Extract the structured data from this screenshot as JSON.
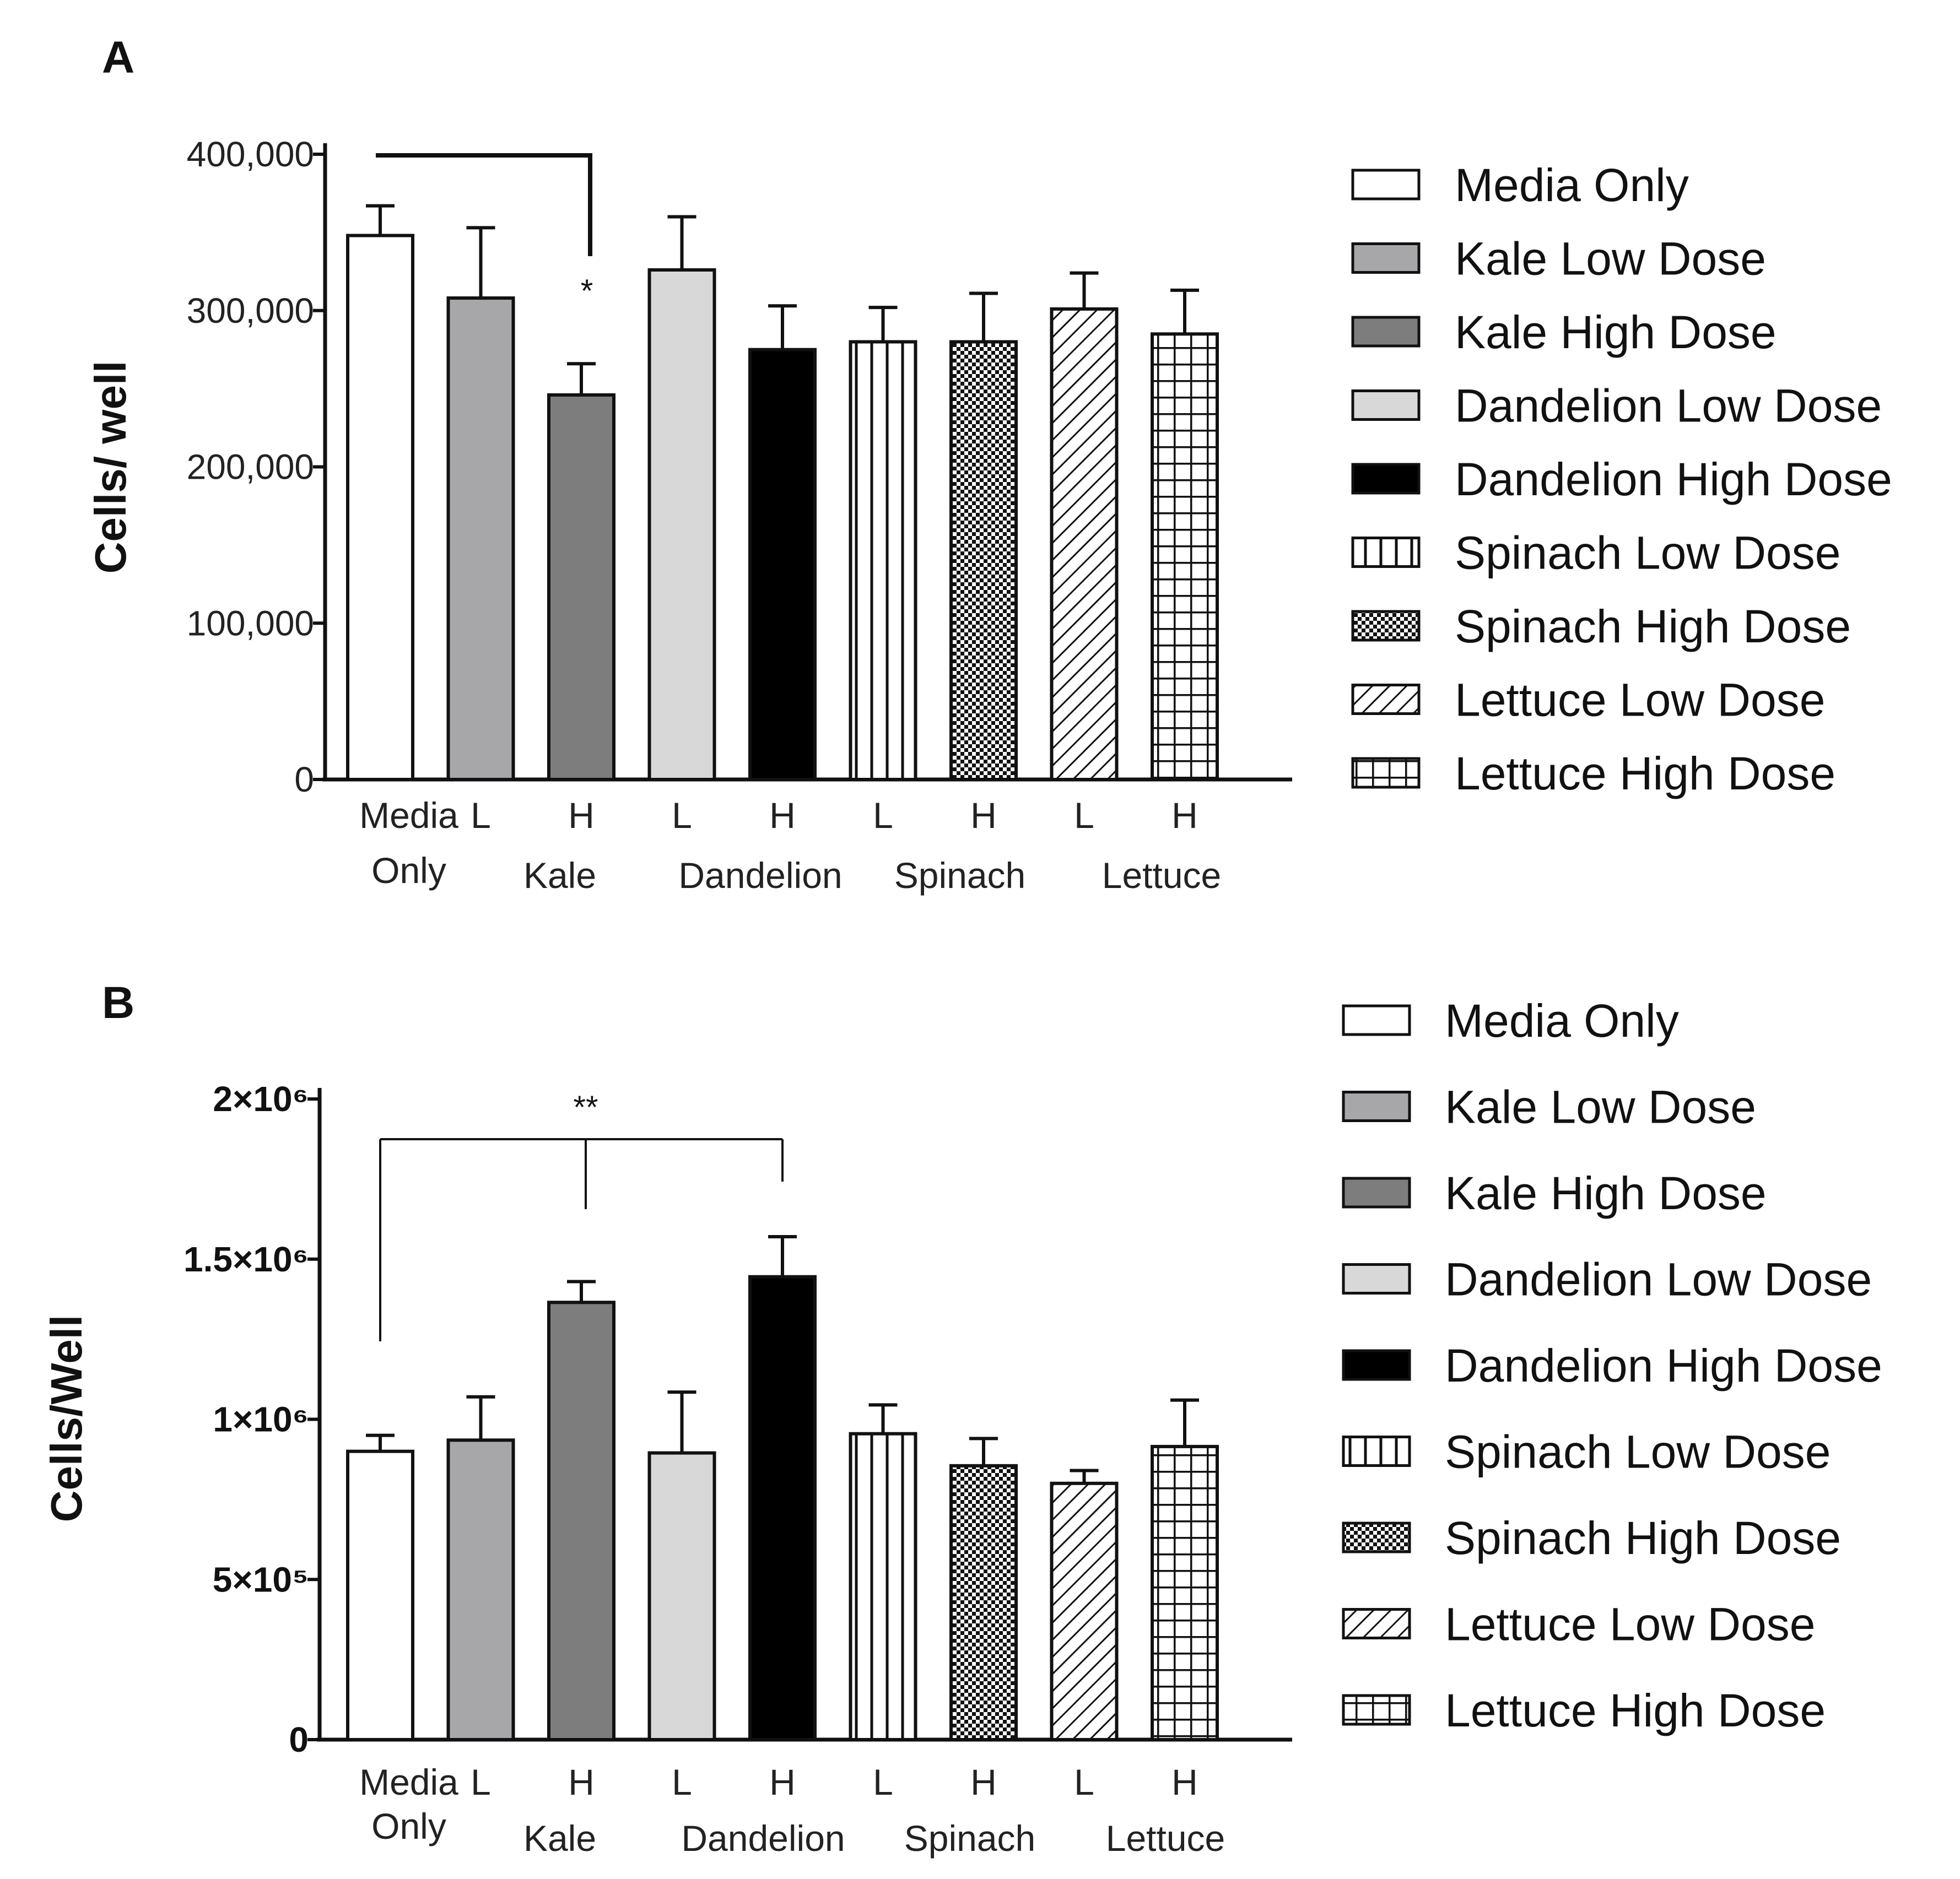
{
  "legend": [
    {
      "label": "Media Only",
      "fill": "#ffffff",
      "pattern": "none"
    },
    {
      "label": "Kale Low Dose",
      "fill": "#a7a7aa",
      "pattern": "none"
    },
    {
      "label": "Kale High Dose",
      "fill": "#7d7d7d",
      "pattern": "none"
    },
    {
      "label": "Dandelion Low Dose",
      "fill": "#d8d8d8",
      "pattern": "none"
    },
    {
      "label": "Dandelion High Dose",
      "fill": "#000000",
      "pattern": "none"
    },
    {
      "label": "Spinach Low Dose",
      "fill": "#ffffff",
      "pattern": "vlines"
    },
    {
      "label": "Spinach High Dose",
      "fill": "#ffffff",
      "pattern": "checker"
    },
    {
      "label": "Lettuce Low Dose",
      "fill": "#ffffff",
      "pattern": "diag"
    },
    {
      "label": "Lettuce High Dose",
      "fill": "#ffffff",
      "pattern": "grid"
    }
  ],
  "chart_data": [
    {
      "panel": "A",
      "type": "bar",
      "ylabel": "Cells/ well",
      "ylim": [
        0,
        400000
      ],
      "yticks": [
        0,
        100000,
        200000,
        300000,
        400000
      ],
      "ytick_labels": [
        "0",
        "100,000",
        "200,000",
        "300,000",
        "400,000"
      ],
      "bars": [
        {
          "series": "Media Only",
          "value": 348000,
          "error": 19000
        },
        {
          "series": "Kale Low Dose",
          "value": 308000,
          "error": 45000
        },
        {
          "series": "Kale High Dose",
          "value": 246000,
          "error": 20000
        },
        {
          "series": "Dandelion Low Dose",
          "value": 326000,
          "error": 34000
        },
        {
          "series": "Dandelion High Dose",
          "value": 275000,
          "error": 28000
        },
        {
          "series": "Spinach Low Dose",
          "value": 280000,
          "error": 22000
        },
        {
          "series": "Spinach High Dose",
          "value": 280000,
          "error": 31000
        },
        {
          "series": "Lettuce Low Dose",
          "value": 301000,
          "error": 23000
        },
        {
          "series": "Lettuce High Dose",
          "value": 285000,
          "error": 28000
        }
      ],
      "dose_labels": [
        "L",
        "H",
        "L",
        "H",
        "L",
        "H",
        "L",
        "H"
      ],
      "group_labels": [
        "Media\nOnly",
        "Kale",
        "Dandelion",
        "Spinach",
        "Lettuce"
      ],
      "significance": [
        {
          "from": 0,
          "to": [
            2
          ],
          "label": "*"
        }
      ]
    },
    {
      "panel": "B",
      "type": "bar",
      "ylabel": "Cells/Well",
      "ylim": [
        0,
        2000000
      ],
      "yticks": [
        0,
        500000,
        1000000,
        1500000,
        2000000
      ],
      "ytick_labels": [
        "0",
        "5×10⁵",
        "1×10⁶",
        "1.5×10⁶",
        "2×10⁶"
      ],
      "bars": [
        {
          "series": "Media Only",
          "value": 900000,
          "error": 50000
        },
        {
          "series": "Kale Low Dose",
          "value": 935000,
          "error": 135000
        },
        {
          "series": "Kale High Dose",
          "value": 1365000,
          "error": 65000
        },
        {
          "series": "Dandelion Low Dose",
          "value": 895000,
          "error": 190000
        },
        {
          "series": "Dandelion High Dose",
          "value": 1445000,
          "error": 125000
        },
        {
          "series": "Spinach Low Dose",
          "value": 955000,
          "error": 90000
        },
        {
          "series": "Spinach High Dose",
          "value": 855000,
          "error": 85000
        },
        {
          "series": "Lettuce Low Dose",
          "value": 800000,
          "error": 40000
        },
        {
          "series": "Lettuce High Dose",
          "value": 915000,
          "error": 145000
        }
      ],
      "dose_labels": [
        "L",
        "H",
        "L",
        "H",
        "L",
        "H",
        "L",
        "H"
      ],
      "group_labels": [
        "Media\nOnly",
        "Kale",
        "Dandelion",
        "Spinach",
        "Lettuce"
      ],
      "significance": [
        {
          "from": 0,
          "to": [
            2,
            4
          ],
          "label": "**"
        }
      ]
    }
  ]
}
